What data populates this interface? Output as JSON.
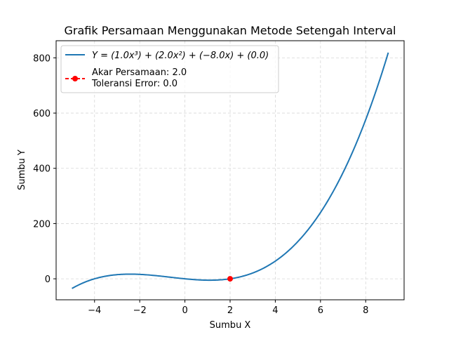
{
  "chart_data": {
    "type": "line",
    "title": "Grafik Persamaan Menggunakan Metode Setengah Interval",
    "xlabel": "Sumbu X",
    "ylabel": "Sumbu Y",
    "xlim": [
      -5.7,
      9.7
    ],
    "ylim": [
      -76,
      862
    ],
    "xticks": [
      -4,
      -2,
      0,
      2,
      4,
      6,
      8
    ],
    "xtick_labels": [
      "−4",
      "−2",
      "0",
      "2",
      "4",
      "6",
      "8"
    ],
    "yticks": [
      0,
      200,
      400,
      600,
      800
    ],
    "ytick_labels": [
      "0",
      "200",
      "400",
      "600",
      "800"
    ],
    "grid": true,
    "legend_position": "upper-left",
    "series": [
      {
        "name": "Y = (1.0x³) + (2.0x²) + (−8.0x) + (0.0)",
        "color": "#1f77b4",
        "style": "solid",
        "coefficients": [
          1.0,
          2.0,
          -8.0,
          0.0
        ],
        "x_range": [
          -5,
          9
        ]
      },
      {
        "name": "Akar Persamaan: 2.0",
        "name_line2": "Toleransi Error: 0.0",
        "color": "#ff0000",
        "style": "dashed-marker",
        "x": [
          2.0
        ],
        "y": [
          0.0
        ]
      }
    ]
  }
}
